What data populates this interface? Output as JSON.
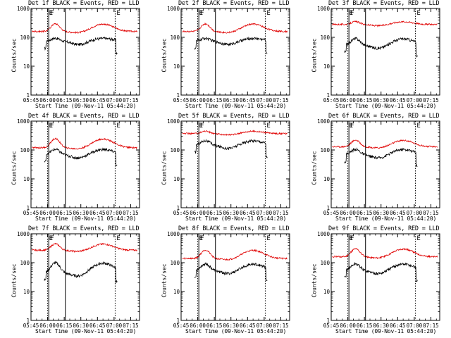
{
  "chart_data": [
    {
      "type": "line",
      "title": "Det 1f BLACK = Events, RED = LLD",
      "xlabel": "Start Time (09-Nov-11 05:44:20)",
      "ylabel": "Counts/sec",
      "series": [
        {
          "color": "#000000",
          "base": 75,
          "peak": 95
        },
        {
          "color": "#e00000",
          "base": 160,
          "peak": 310
        }
      ],
      "markers": [
        {
          "t": "06:00",
          "label": "E",
          "style": "dotted"
        },
        {
          "t": "06:01",
          "label": "F",
          "style": "solid"
        },
        {
          "t": "06:16",
          "label": "",
          "style": "solid"
        },
        {
          "t": "07:01",
          "label": "E",
          "style": "dotted"
        }
      ]
    },
    {
      "type": "line",
      "title": "Det 2f BLACK = Events, RED = LLD",
      "xlabel": "Start Time (09-Nov-11 05:44:20)",
      "ylabel": "Counts/sec",
      "series": [
        {
          "color": "#000000",
          "base": 75,
          "peak": 95
        },
        {
          "color": "#e00000",
          "base": 160,
          "peak": 310
        }
      ],
      "markers": [
        {
          "t": "06:00",
          "label": "E",
          "style": "dotted"
        },
        {
          "t": "06:01",
          "label": "F",
          "style": "solid"
        },
        {
          "t": "06:16",
          "label": "",
          "style": "solid"
        },
        {
          "t": "07:01",
          "label": "E",
          "style": "dotted"
        }
      ]
    },
    {
      "type": "line",
      "title": "Det 3f BLACK = Events, RED = LLD",
      "xlabel": "Start Time (09-Nov-11 05:44:20)",
      "ylabel": "Counts/sec",
      "series": [
        {
          "color": "#000000",
          "base": 55,
          "peak": 95
        },
        {
          "color": "#e00000",
          "base": 280,
          "peak": 360
        }
      ],
      "markers": [
        {
          "t": "06:00",
          "label": "E",
          "style": "dotted"
        },
        {
          "t": "06:01",
          "label": "F",
          "style": "solid"
        },
        {
          "t": "06:16",
          "label": "",
          "style": "solid"
        },
        {
          "t": "07:01",
          "label": "E",
          "style": "dotted"
        }
      ]
    },
    {
      "type": "line",
      "title": "Det 4f BLACK = Events, RED = LLD",
      "xlabel": "Start Time (09-Nov-11 05:44:20)",
      "ylabel": "Counts/sec",
      "series": [
        {
          "color": "#000000",
          "base": 70,
          "peak": 110
        },
        {
          "color": "#e00000",
          "base": 120,
          "peak": 260
        }
      ],
      "markers": [
        {
          "t": "06:00",
          "label": "E",
          "style": "dotted"
        },
        {
          "t": "06:01",
          "label": "F",
          "style": "solid"
        },
        {
          "t": "06:16",
          "label": "",
          "style": "solid"
        },
        {
          "t": "07:01",
          "label": "E",
          "style": "dotted"
        }
      ]
    },
    {
      "type": "line",
      "title": "Det 5f BLACK = Events, RED = LLD",
      "xlabel": "Start Time (09-Nov-11 05:44:20)",
      "ylabel": "Counts/sec",
      "series": [
        {
          "color": "#000000",
          "base": 150,
          "peak": 220
        },
        {
          "color": "#e00000",
          "base": 370,
          "peak": 460
        }
      ],
      "markers": [
        {
          "t": "06:00",
          "label": "E",
          "style": "dotted"
        },
        {
          "t": "06:01",
          "label": "F",
          "style": "solid"
        },
        {
          "t": "06:16",
          "label": "",
          "style": "solid"
        },
        {
          "t": "07:01",
          "label": "E",
          "style": "dotted"
        }
      ]
    },
    {
      "type": "line",
      "title": "Det 6f BLACK = Events, RED = LLD",
      "xlabel": "Start Time (09-Nov-11 05:44:20)",
      "ylabel": "Counts/sec",
      "series": [
        {
          "color": "#000000",
          "base": 70,
          "peak": 110
        },
        {
          "color": "#e00000",
          "base": 130,
          "peak": 230
        }
      ],
      "markers": [
        {
          "t": "06:00",
          "label": "E",
          "style": "dotted"
        },
        {
          "t": "06:01",
          "label": "F",
          "style": "solid"
        },
        {
          "t": "06:16",
          "label": "",
          "style": "solid"
        },
        {
          "t": "07:01",
          "label": "E",
          "style": "dotted"
        }
      ]
    },
    {
      "type": "line",
      "title": "Det 7f BLACK = Events, RED = LLD",
      "xlabel": "Start Time (09-Nov-11 05:44:20)",
      "ylabel": "Counts/sec",
      "series": [
        {
          "color": "#000000",
          "base": 45,
          "peak": 105
        },
        {
          "color": "#e00000",
          "base": 270,
          "peak": 470
        }
      ],
      "markers": [
        {
          "t": "06:00",
          "label": "E",
          "style": "dotted"
        },
        {
          "t": "06:01",
          "label": "F",
          "style": "solid"
        },
        {
          "t": "06:16",
          "label": "",
          "style": "solid"
        },
        {
          "t": "07:01",
          "label": "E",
          "style": "dotted"
        }
      ]
    },
    {
      "type": "line",
      "title": "Det 8f BLACK = Events, RED = LLD",
      "xlabel": "Start Time (09-Nov-11 05:44:20)",
      "ylabel": "Counts/sec",
      "series": [
        {
          "color": "#000000",
          "base": 55,
          "peak": 95
        },
        {
          "color": "#e00000",
          "base": 140,
          "peak": 290
        }
      ],
      "markers": [
        {
          "t": "06:00",
          "label": "E",
          "style": "dotted"
        },
        {
          "t": "06:01",
          "label": "F",
          "style": "solid"
        },
        {
          "t": "06:16",
          "label": "",
          "style": "solid"
        },
        {
          "t": "07:01",
          "label": "E",
          "style": "dotted"
        }
      ]
    },
    {
      "type": "line",
      "title": "Det 9f BLACK = Events, RED = LLD",
      "xlabel": "Start Time (09-Nov-11 05:44:20)",
      "ylabel": "Counts/sec",
      "series": [
        {
          "color": "#000000",
          "base": 55,
          "peak": 95
        },
        {
          "color": "#e00000",
          "base": 160,
          "peak": 320
        }
      ],
      "markers": [
        {
          "t": "06:00",
          "label": "E",
          "style": "dotted"
        },
        {
          "t": "06:01",
          "label": "F",
          "style": "solid"
        },
        {
          "t": "06:16",
          "label": "",
          "style": "solid"
        },
        {
          "t": "07:01",
          "label": "E",
          "style": "dotted"
        }
      ]
    }
  ],
  "axes": {
    "yscale": "log",
    "ylim": [
      1,
      1000
    ],
    "yticks": [
      1,
      10,
      100,
      1000
    ],
    "ytick_labels": [
      "1",
      "10",
      "100",
      "1000"
    ],
    "xlim": [
      "05:45",
      "07:23"
    ],
    "xticks": [
      "05:45",
      "06:00",
      "06:15",
      "06:30",
      "06:45",
      "07:00",
      "07:15"
    ]
  }
}
